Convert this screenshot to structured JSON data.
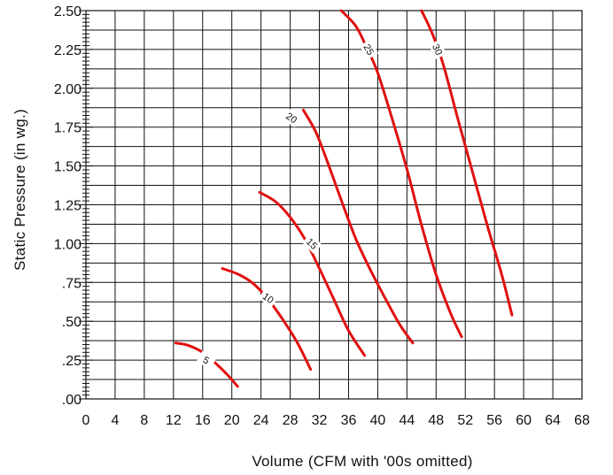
{
  "chart_data": {
    "type": "line",
    "title": "",
    "xlabel": "Volume (CFM with '00s omitted)",
    "ylabel": "Static Pressure (in wg.)",
    "xlim": [
      0,
      68
    ],
    "ylim": [
      0,
      2.5
    ],
    "x_ticks": [
      "0",
      "4",
      "8",
      "12",
      "16",
      "20",
      "24",
      "28",
      "32",
      "36",
      "40",
      "44",
      "48",
      "52",
      "56",
      "60",
      "64",
      "68"
    ],
    "y_ticks": [
      {
        "value": 0,
        "label": ".00"
      },
      {
        "value": 0.25,
        "label": ".25"
      },
      {
        "value": 0.5,
        "label": ".50"
      },
      {
        "value": 0.75,
        "label": ".75"
      },
      {
        "value": 1.0,
        "label": "1.00"
      },
      {
        "value": 1.25,
        "label": "1.25"
      },
      {
        "value": 1.5,
        "label": "1.50"
      },
      {
        "value": 1.75,
        "label": "1.75"
      },
      {
        "value": 2.0,
        "label": "2.00"
      },
      {
        "value": 2.25,
        "label": "2.25"
      },
      {
        "value": 2.5,
        "label": "2.50"
      }
    ],
    "grid": true,
    "line_color": "#e01010",
    "series": [
      {
        "label": "5",
        "label_at": [
          16.5,
          0.25
        ],
        "label_angle": 30,
        "points": [
          [
            12.3,
            0.36
          ],
          [
            14,
            0.345
          ],
          [
            16,
            0.3
          ],
          [
            18,
            0.22
          ],
          [
            19.5,
            0.15
          ],
          [
            20.8,
            0.08
          ]
        ]
      },
      {
        "label": "10",
        "label_at": [
          25,
          0.65
        ],
        "label_angle": 35,
        "points": [
          [
            18.7,
            0.84
          ],
          [
            21,
            0.8
          ],
          [
            23,
            0.74
          ],
          [
            25,
            0.64
          ],
          [
            27,
            0.51
          ],
          [
            29,
            0.36
          ],
          [
            30.8,
            0.19
          ]
        ]
      },
      {
        "label": "15",
        "label_at": [
          31,
          1.0
        ],
        "label_angle": 45,
        "points": [
          [
            23.8,
            1.33
          ],
          [
            26,
            1.27
          ],
          [
            28,
            1.17
          ],
          [
            30,
            1.03
          ],
          [
            32,
            0.84
          ],
          [
            34,
            0.64
          ],
          [
            36,
            0.44
          ],
          [
            38.2,
            0.28
          ]
        ]
      },
      {
        "label": "20",
        "label_at": [
          28.2,
          1.81
        ],
        "label_angle": 35,
        "points": [
          [
            29.8,
            1.86
          ],
          [
            31.5,
            1.72
          ],
          [
            33,
            1.54
          ],
          [
            35,
            1.28
          ],
          [
            37,
            1.03
          ],
          [
            39,
            0.83
          ],
          [
            41,
            0.65
          ],
          [
            43,
            0.48
          ],
          [
            44.8,
            0.36
          ]
        ]
      },
      {
        "label": "25",
        "label_at": [
          38.8,
          2.25
        ],
        "label_angle": 60,
        "points": [
          [
            35,
            2.5
          ],
          [
            37,
            2.4
          ],
          [
            38.5,
            2.26
          ],
          [
            40,
            2.1
          ],
          [
            42,
            1.8
          ],
          [
            44,
            1.48
          ],
          [
            46,
            1.12
          ],
          [
            48,
            0.8
          ],
          [
            50,
            0.55
          ],
          [
            51.5,
            0.4
          ]
        ]
      },
      {
        "label": "30",
        "label_at": [
          48.2,
          2.25
        ],
        "label_angle": 65,
        "points": [
          [
            46,
            2.5
          ],
          [
            47.5,
            2.35
          ],
          [
            49,
            2.15
          ],
          [
            51,
            1.8
          ],
          [
            53,
            1.46
          ],
          [
            55,
            1.12
          ],
          [
            57,
            0.8
          ],
          [
            58.4,
            0.54
          ]
        ]
      }
    ]
  }
}
